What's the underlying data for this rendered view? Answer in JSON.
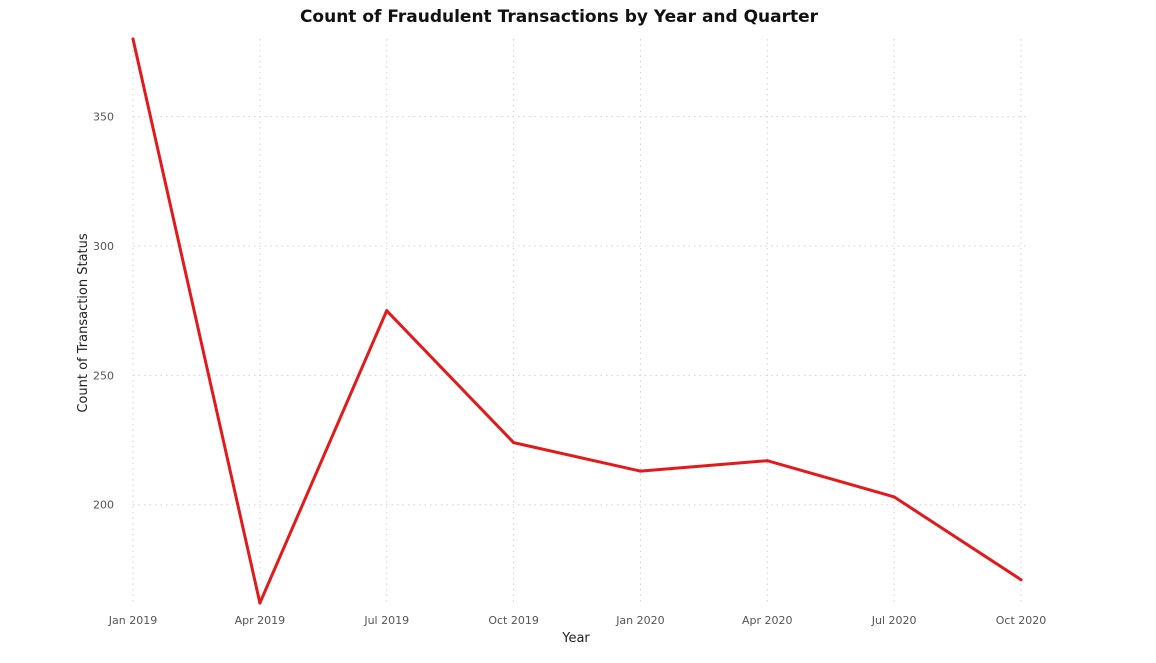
{
  "chart_data": {
    "type": "line",
    "title": "Count of Fraudulent Transactions by Year and Quarter",
    "xlabel": "Year",
    "ylabel": "Count of Transaction Status",
    "categories": [
      "Jan 2019",
      "Apr 2019",
      "Jul 2019",
      "Oct 2019",
      "Jan 2020",
      "Apr 2020",
      "Jul 2020",
      "Oct 2020"
    ],
    "series": [
      {
        "values": [
          380,
          162,
          275,
          224,
          213,
          217,
          203,
          171
        ],
        "color": "#e31a1c"
      }
    ],
    "yticks": [
      200,
      250,
      300,
      350
    ],
    "ylim": [
      162,
      380
    ],
    "grid": true,
    "legend": "none"
  }
}
